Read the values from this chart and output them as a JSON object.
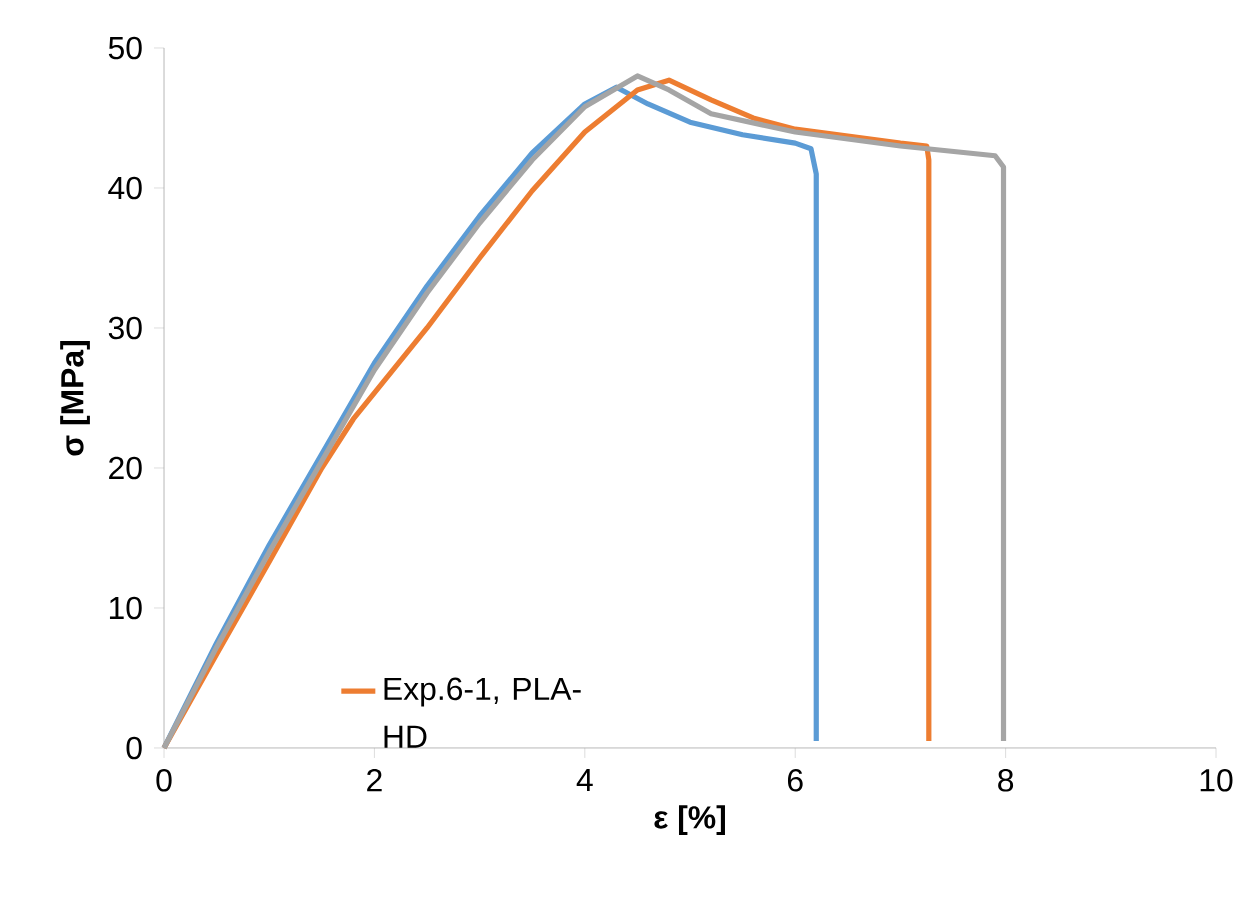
{
  "chart_data": {
    "type": "line",
    "xlabel": "ε [%]",
    "ylabel": "σ [MPa]",
    "xlim": [
      0,
      10
    ],
    "ylim": [
      0,
      50
    ],
    "xticks": [
      0,
      2,
      4,
      6,
      8,
      10
    ],
    "yticks": [
      0,
      10,
      20,
      30,
      40,
      50
    ],
    "grid": false,
    "legend": "bottom left",
    "marker": "none",
    "line_style": "solid",
    "series": [
      {
        "color": "#5b9bd5",
        "x": [
          0,
          0.5,
          1,
          1.5,
          2,
          2.5,
          3,
          3.5,
          4,
          4.3,
          4.6,
          5,
          5.5,
          6,
          6.15,
          6.2,
          6.2
        ],
        "values": [
          0,
          7.5,
          14.5,
          21,
          27.5,
          33,
          38,
          42.5,
          46,
          47.2,
          46,
          44.7,
          43.8,
          43.2,
          42.8,
          41,
          0.5
        ]
      },
      {
        "name": "Exp.6-1, PLA-HD",
        "color": "#ed7d31",
        "x": [
          0,
          0.5,
          1,
          1.5,
          1.8,
          2.5,
          3,
          3.5,
          4,
          4.5,
          4.8,
          5.2,
          5.6,
          6,
          7,
          7.25,
          7.27,
          7.27
        ],
        "values": [
          0,
          6.7,
          13.3,
          20,
          23.5,
          30,
          35,
          39.8,
          44,
          47,
          47.7,
          46.3,
          45,
          44.2,
          43.2,
          43,
          42,
          0.5
        ]
      },
      {
        "color": "#a5a5a5",
        "x": [
          0,
          0.5,
          1,
          1.5,
          2,
          2.5,
          3,
          3.5,
          4,
          4.5,
          4.8,
          5.2,
          6,
          7,
          7.9,
          7.98,
          7.98
        ],
        "values": [
          0,
          7.2,
          14,
          20.5,
          27,
          32.5,
          37.5,
          42,
          45.8,
          48,
          47,
          45.3,
          44,
          43,
          42.3,
          41.5,
          0.5
        ]
      }
    ]
  }
}
